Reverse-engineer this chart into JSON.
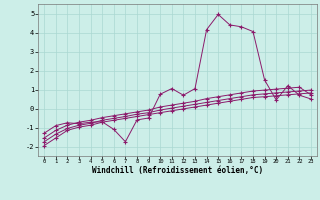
{
  "xlabel": "Windchill (Refroidissement éolien,°C)",
  "background_color": "#cceee8",
  "grid_color": "#aad8d2",
  "line_color": "#8b1a6b",
  "x_ticks": [
    0,
    1,
    2,
    3,
    4,
    5,
    6,
    7,
    8,
    9,
    10,
    11,
    12,
    13,
    14,
    15,
    16,
    17,
    18,
    19,
    20,
    21,
    22,
    23
  ],
  "y_ticks": [
    -2,
    -1,
    0,
    1,
    2,
    3,
    4,
    5
  ],
  "xlim": [
    -0.5,
    23.5
  ],
  "ylim": [
    -2.5,
    5.5
  ],
  "series1_y": [
    -1.3,
    -0.9,
    -0.75,
    -0.8,
    -0.72,
    -0.7,
    -1.1,
    -1.75,
    -0.6,
    -0.5,
    0.75,
    1.05,
    0.7,
    1.05,
    4.15,
    4.95,
    4.4,
    4.3,
    4.05,
    1.5,
    0.45,
    1.2,
    0.7,
    0.5
  ],
  "series2_y": [
    -1.75,
    -1.35,
    -1.05,
    -0.88,
    -0.78,
    -0.62,
    -0.52,
    -0.42,
    -0.3,
    -0.22,
    -0.08,
    0.02,
    0.12,
    0.22,
    0.32,
    0.42,
    0.52,
    0.62,
    0.72,
    0.77,
    0.82,
    0.87,
    0.92,
    0.97
  ],
  "series3_y": [
    -1.55,
    -1.15,
    -0.88,
    -0.72,
    -0.62,
    -0.48,
    -0.38,
    -0.28,
    -0.18,
    -0.08,
    0.08,
    0.18,
    0.28,
    0.38,
    0.52,
    0.62,
    0.72,
    0.82,
    0.92,
    0.97,
    1.02,
    1.07,
    1.12,
    0.72
  ],
  "series4_y": [
    -1.95,
    -1.55,
    -1.15,
    -0.98,
    -0.88,
    -0.72,
    -0.62,
    -0.52,
    -0.42,
    -0.32,
    -0.22,
    -0.12,
    -0.02,
    0.08,
    0.18,
    0.28,
    0.38,
    0.48,
    0.58,
    0.62,
    0.67,
    0.72,
    0.77,
    0.82
  ]
}
